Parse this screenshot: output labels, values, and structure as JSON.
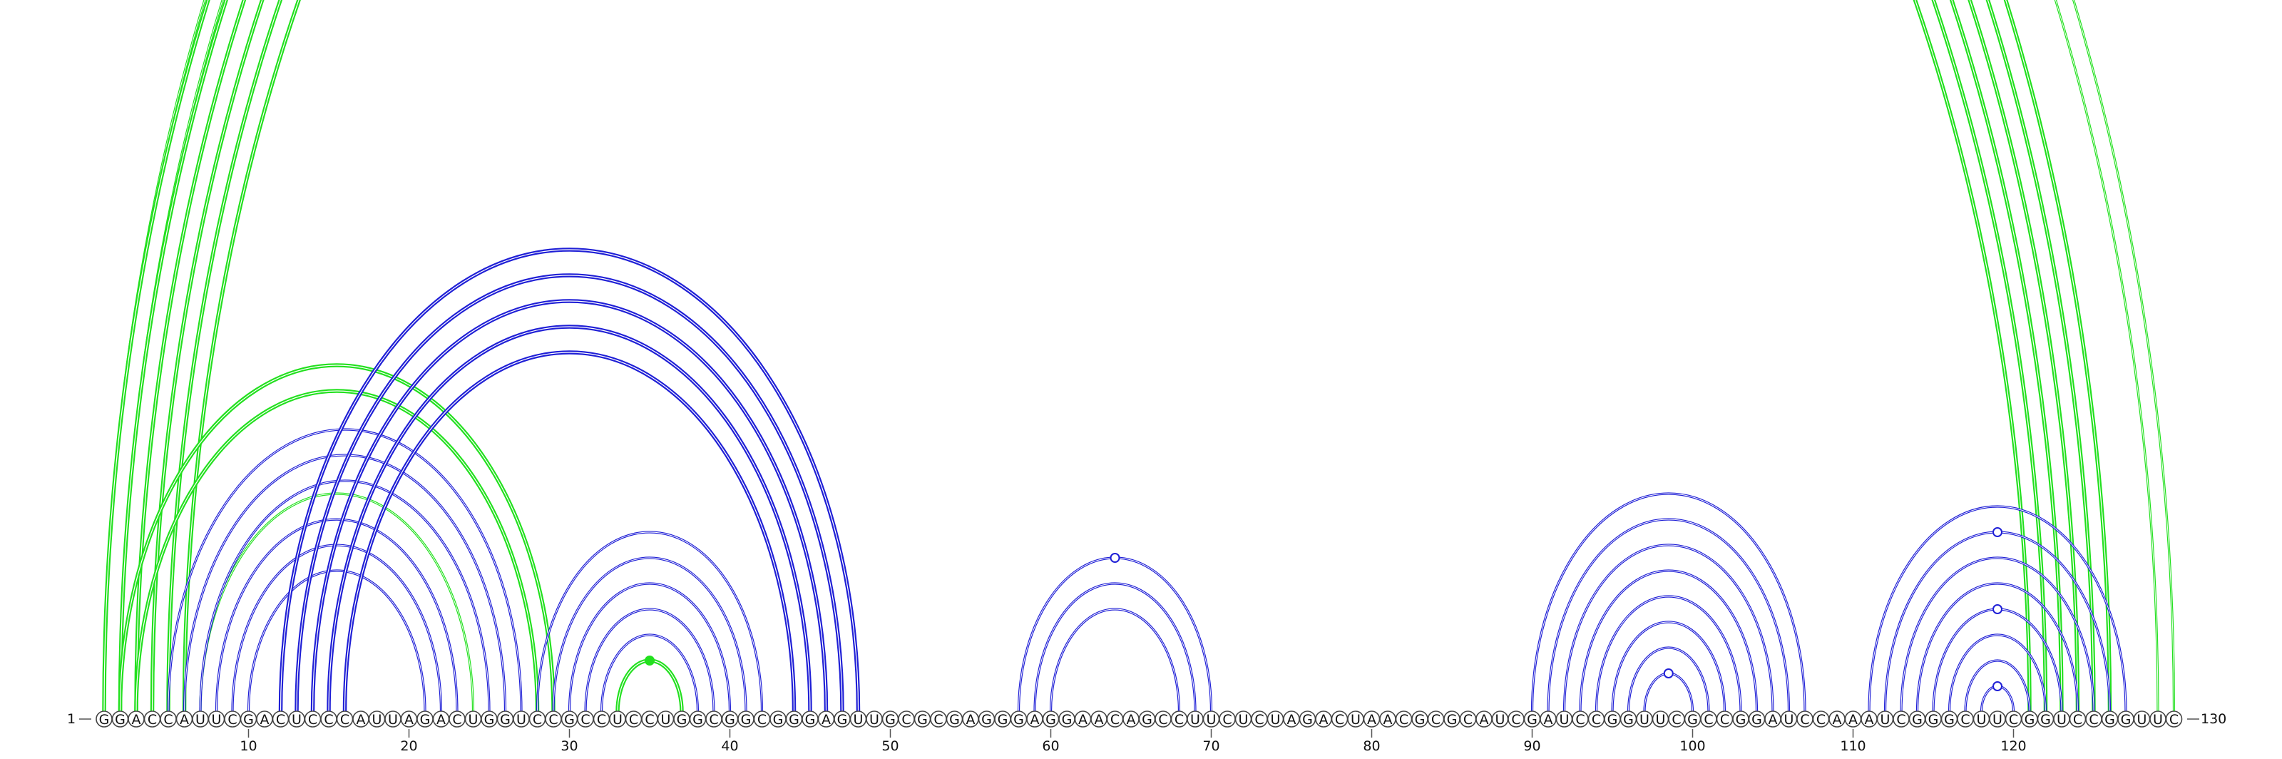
{
  "sequence": "GGACCAUUCGACUCCCAUUAGACUGGUCCGCCUCCUGGCGGCGGGAGUUGCGCGAGGGAGGAACAGCCUUCUCUAGACUAACGCGCAUCGAUCCGGUUCGCCGGAUCCAAAUCGGGCUUCGGUCCGGUUC",
  "start_label": "1",
  "end_label": "130",
  "tick_labels": [
    "10",
    "20",
    "30",
    "40",
    "50",
    "60",
    "70",
    "80",
    "90",
    "100",
    "110",
    "120"
  ],
  "colors": {
    "green": "#22e01e",
    "blue": "#1f1fd6"
  },
  "arc_groups": [
    {
      "color": "green",
      "weight": "thin",
      "pairs": [
        [
          1,
          130
        ],
        [
          2,
          129
        ]
      ],
      "marker": {
        "style": "open",
        "at_pair": [
          1,
          130
        ]
      }
    },
    {
      "color": "green",
      "weight": "thick",
      "pairs": [
        [
          1,
          126
        ],
        [
          2,
          125
        ],
        [
          3,
          124
        ],
        [
          4,
          123
        ],
        [
          5,
          122
        ],
        [
          6,
          121
        ]
      ]
    },
    {
      "color": "green",
      "weight": "thick",
      "pairs": [
        [
          2,
          29
        ],
        [
          3,
          28
        ]
      ]
    },
    {
      "color": "green",
      "weight": "thin",
      "pairs": [
        [
          7,
          24
        ]
      ]
    },
    {
      "color": "green",
      "weight": "thick",
      "pairs": [
        [
          33,
          37
        ]
      ],
      "marker": {
        "style": "filled",
        "at_pair": [
          33,
          37
        ]
      }
    },
    {
      "color": "blue",
      "weight": "thin",
      "pairs": [
        [
          5,
          27
        ],
        [
          6,
          26
        ],
        [
          7,
          25
        ],
        [
          8,
          23
        ],
        [
          9,
          22
        ],
        [
          10,
          21
        ]
      ]
    },
    {
      "color": "blue",
      "weight": "thick",
      "pairs": [
        [
          12,
          48
        ],
        [
          13,
          47
        ],
        [
          14,
          46
        ],
        [
          15,
          45
        ],
        [
          16,
          44
        ]
      ]
    },
    {
      "color": "blue",
      "weight": "thin",
      "pairs": [
        [
          28,
          42
        ],
        [
          29,
          41
        ],
        [
          30,
          40
        ],
        [
          31,
          39
        ],
        [
          32,
          38
        ]
      ]
    },
    {
      "color": "blue",
      "weight": "thin",
      "pairs": [
        [
          58,
          70
        ],
        [
          59,
          69
        ],
        [
          60,
          68
        ]
      ],
      "marker": {
        "style": "open",
        "at_pair": [
          58,
          70
        ]
      }
    },
    {
      "color": "blue",
      "weight": "thin",
      "pairs": [
        [
          90,
          107
        ],
        [
          91,
          106
        ],
        [
          92,
          105
        ],
        [
          93,
          104
        ],
        [
          94,
          103
        ],
        [
          95,
          102
        ],
        [
          96,
          101
        ],
        [
          97,
          100
        ]
      ],
      "marker": {
        "style": "open",
        "at_pair": [
          97,
          100
        ]
      }
    },
    {
      "color": "blue",
      "weight": "thin",
      "pairs": [
        [
          111,
          127
        ],
        [
          112,
          126
        ],
        [
          113,
          125
        ],
        [
          114,
          124
        ],
        [
          115,
          123
        ],
        [
          116,
          122
        ],
        [
          117,
          121
        ],
        [
          118,
          120
        ]
      ],
      "markers": [
        {
          "style": "open",
          "at_pair": [
            112,
            126
          ]
        },
        {
          "style": "open",
          "at_pair": [
            115,
            123
          ]
        },
        {
          "style": "open",
          "at_pair": [
            118,
            120
          ]
        }
      ]
    }
  ]
}
